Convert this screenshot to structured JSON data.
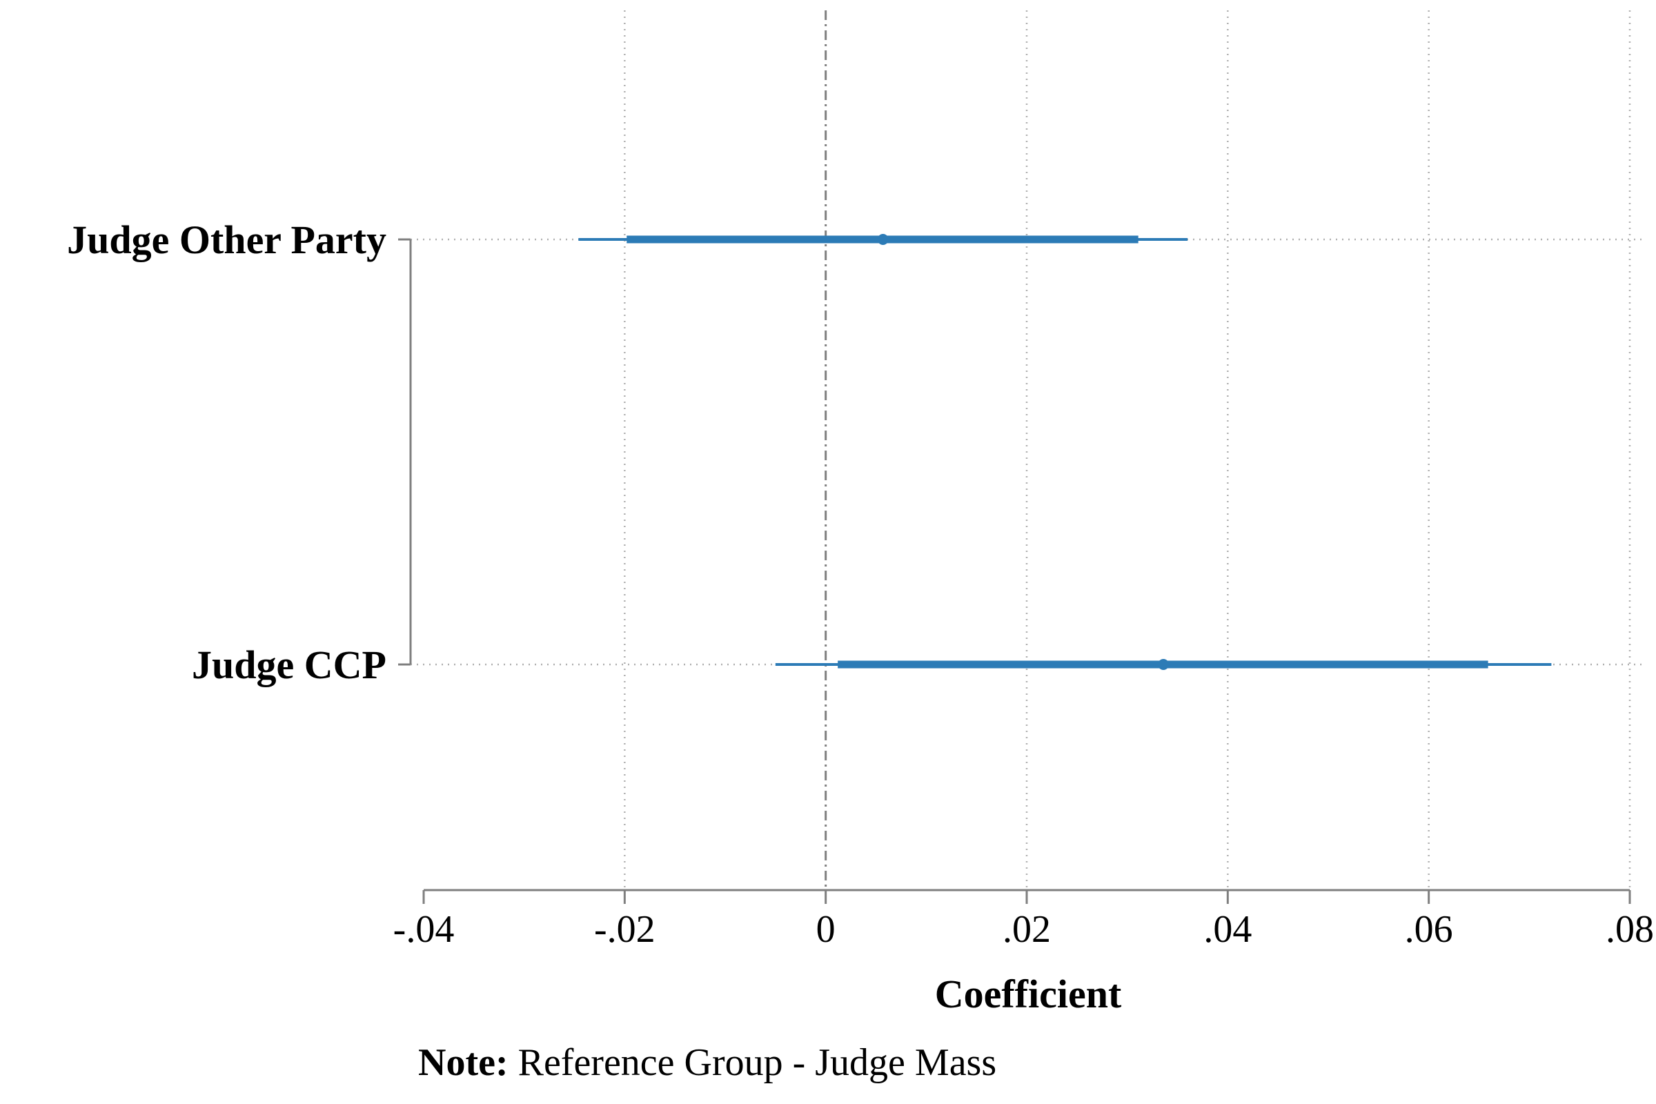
{
  "chart_data": {
    "type": "coefficient_plot",
    "xlabel": "Coefficient",
    "xlim": [
      -0.04,
      0.08
    ],
    "xticks": [
      {
        "value": -0.04,
        "label": "-.04"
      },
      {
        "value": -0.02,
        "label": "-.02"
      },
      {
        "value": 0,
        "label": "0"
      },
      {
        "value": 0.02,
        "label": ".02"
      },
      {
        "value": 0.04,
        "label": ".04"
      },
      {
        "value": 0.06,
        "label": ".06"
      },
      {
        "value": 0.08,
        "label": ".08"
      }
    ],
    "vertical_gridlines": true,
    "reference_line": 0,
    "series_color": "#2c7bb6",
    "axis_color": "#7f7f7f",
    "categories": [
      {
        "label": "Judge Other Party",
        "estimate": 0.0057,
        "ci_inner": [
          -0.0198,
          0.0311
        ],
        "ci_outer": [
          -0.0246,
          0.036
        ]
      },
      {
        "label": "Judge CCP",
        "estimate": 0.0336,
        "ci_inner": [
          0.0012,
          0.0659
        ],
        "ci_outer": [
          -0.005,
          0.0722
        ]
      }
    ],
    "note": {
      "bold": "Note:",
      "text": " Reference Group - Judge Mass"
    }
  }
}
